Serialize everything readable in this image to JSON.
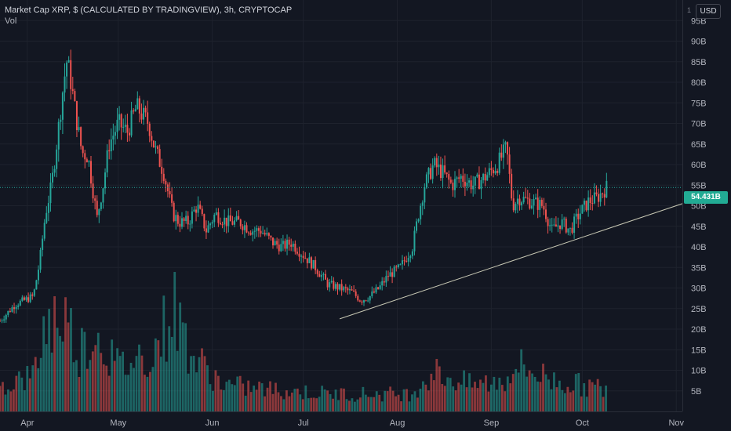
{
  "header": {
    "title": "Market Cap XRP, $ (CALCULATED BY TRADINGVIEW), 3h, CRYPTOCAP",
    "volume_label": "Vol",
    "currency_button": "USD",
    "scale_mark": "1"
  },
  "colors": {
    "background": "#131722",
    "up": "#26a69a",
    "down": "#ef5350",
    "axis_text": "#b2b5be",
    "trendline": "#c8c8b4",
    "price_tag": "#22ab94"
  },
  "last_price_label": "54.431B",
  "chart_data": {
    "type": "candlestick",
    "title": "Market Cap XRP, $ (CALCULATED BY TRADINGVIEW), 3h, CRYPTOCAP",
    "y_unit": "B USD",
    "ylim": [
      0,
      100
    ],
    "y_ticks": [
      5,
      10,
      15,
      20,
      25,
      30,
      35,
      40,
      45,
      50,
      55,
      60,
      65,
      70,
      75,
      80,
      85,
      90,
      95
    ],
    "y_tick_labels": [
      "5B",
      "10B",
      "15B",
      "20B",
      "25B",
      "30B",
      "35B",
      "40B",
      "45B",
      "50B",
      "55B",
      "60B",
      "65B",
      "70B",
      "75B",
      "80B",
      "85B",
      "90B",
      "95B"
    ],
    "x_ticks": [
      "Apr",
      "May",
      "Jun",
      "Jul",
      "Aug",
      "Sep",
      "Oct",
      "Nov"
    ],
    "x_range": [
      "2021-03-23",
      "2021-11-03"
    ],
    "price_path": [
      [
        "2021-03-23",
        22
      ],
      [
        "2021-03-28",
        26
      ],
      [
        "2021-04-03",
        28
      ],
      [
        "2021-04-05",
        36
      ],
      [
        "2021-04-07",
        48
      ],
      [
        "2021-04-09",
        55
      ],
      [
        "2021-04-11",
        67
      ],
      [
        "2021-04-13",
        80
      ],
      [
        "2021-04-14",
        85
      ],
      [
        "2021-04-15",
        82
      ],
      [
        "2021-04-17",
        72
      ],
      [
        "2021-04-19",
        63
      ],
      [
        "2021-04-21",
        62
      ],
      [
        "2021-04-24",
        47
      ],
      [
        "2021-04-26",
        55
      ],
      [
        "2021-04-28",
        65
      ],
      [
        "2021-05-01",
        70
      ],
      [
        "2021-05-04",
        68
      ],
      [
        "2021-05-07",
        74
      ],
      [
        "2021-05-09",
        72
      ],
      [
        "2021-05-11",
        70
      ],
      [
        "2021-05-13",
        64
      ],
      [
        "2021-05-16",
        58
      ],
      [
        "2021-05-19",
        48
      ],
      [
        "2021-05-21",
        46
      ],
      [
        "2021-05-24",
        46
      ],
      [
        "2021-05-27",
        50
      ],
      [
        "2021-05-30",
        44
      ],
      [
        "2021-06-02",
        48
      ],
      [
        "2021-06-06",
        46
      ],
      [
        "2021-06-10",
        46
      ],
      [
        "2021-06-14",
        44
      ],
      [
        "2021-06-17",
        44
      ],
      [
        "2021-06-21",
        41
      ],
      [
        "2021-06-24",
        40
      ],
      [
        "2021-06-27",
        41
      ],
      [
        "2021-07-01",
        38
      ],
      [
        "2021-07-05",
        35
      ],
      [
        "2021-07-09",
        31
      ],
      [
        "2021-07-13",
        30
      ],
      [
        "2021-07-17",
        29
      ],
      [
        "2021-07-20",
        27
      ],
      [
        "2021-07-23",
        28
      ],
      [
        "2021-07-26",
        30
      ],
      [
        "2021-07-29",
        33
      ],
      [
        "2021-08-02",
        35
      ],
      [
        "2021-08-06",
        40
      ],
      [
        "2021-08-08",
        48
      ],
      [
        "2021-08-10",
        55
      ],
      [
        "2021-08-13",
        60
      ],
      [
        "2021-08-16",
        58
      ],
      [
        "2021-08-19",
        55
      ],
      [
        "2021-08-22",
        57
      ],
      [
        "2021-08-26",
        55
      ],
      [
        "2021-08-30",
        57
      ],
      [
        "2021-09-03",
        60
      ],
      [
        "2021-09-06",
        64
      ],
      [
        "2021-09-08",
        50
      ],
      [
        "2021-09-10",
        52
      ],
      [
        "2021-09-14",
        51
      ],
      [
        "2021-09-18",
        50
      ],
      [
        "2021-09-21",
        44
      ],
      [
        "2021-09-24",
        46
      ],
      [
        "2021-09-27",
        44
      ],
      [
        "2021-09-30",
        48
      ],
      [
        "2021-10-03",
        51
      ],
      [
        "2021-10-06",
        52
      ],
      [
        "2021-10-09",
        54.431
      ]
    ],
    "volume_path": [
      [
        "2021-03-23",
        3
      ],
      [
        "2021-04-03",
        4
      ],
      [
        "2021-04-07",
        10
      ],
      [
        "2021-04-13",
        11
      ],
      [
        "2021-04-18",
        7
      ],
      [
        "2021-04-24",
        9
      ],
      [
        "2021-05-01",
        5
      ],
      [
        "2021-05-13",
        7
      ],
      [
        "2021-05-19",
        12
      ],
      [
        "2021-05-26",
        6
      ],
      [
        "2021-06-05",
        3
      ],
      [
        "2021-06-20",
        2.5
      ],
      [
        "2021-07-10",
        2
      ],
      [
        "2021-07-20",
        2
      ],
      [
        "2021-08-05",
        2
      ],
      [
        "2021-08-13",
        4.5
      ],
      [
        "2021-08-25",
        3
      ],
      [
        "2021-09-06",
        3.5
      ],
      [
        "2021-09-08",
        5.5
      ],
      [
        "2021-09-22",
        3.5
      ],
      [
        "2021-10-09",
        2.5
      ]
    ],
    "trendline": {
      "start": [
        "2021-07-13",
        22.5
      ],
      "end": [
        "2021-11-03",
        50.5
      ]
    },
    "last_price": 54.431
  }
}
